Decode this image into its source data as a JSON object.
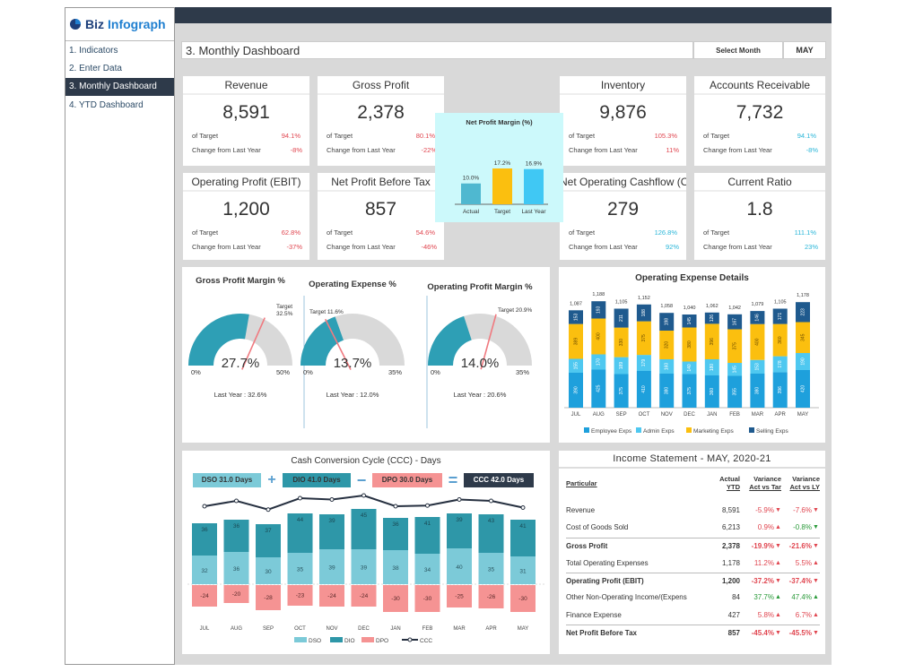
{
  "brand": {
    "name_part1": "Biz",
    "name_part2": "Infograph"
  },
  "sidebar": {
    "items": [
      {
        "label": "1. Indicators"
      },
      {
        "label": "2. Enter Data"
      },
      {
        "label": "3. Monthly Dashboard",
        "active": true
      },
      {
        "label": "4. YTD Dashboard"
      }
    ]
  },
  "header": {
    "title": "3. Monthly Dashboard",
    "select_label": "Select Month",
    "month": "MAY"
  },
  "kpis": [
    {
      "title": "Revenue",
      "value": "8,591",
      "target": "94.1%",
      "change": "-8%",
      "color": "red"
    },
    {
      "title": "Gross Profit",
      "value": "2,378",
      "target": "80.1%",
      "change": "-22%",
      "color": "red"
    },
    {
      "title": "Inventory",
      "value": "9,876",
      "target": "105.3%",
      "change": "11%",
      "color": "red"
    },
    {
      "title": "Accounts Receivable",
      "value": "7,732",
      "target": "94.1%",
      "change": "-8%",
      "color": "cy"
    },
    {
      "title": "Operating Profit (EBIT)",
      "value": "1,200",
      "target": "62.8%",
      "change": "-37%",
      "color": "red"
    },
    {
      "title": "Net Profit Before Tax",
      "value": "857",
      "target": "54.6%",
      "change": "-46%",
      "color": "red"
    },
    {
      "title": "Net Operating Cashflow (OCF)",
      "value": "279",
      "target": "126.8%",
      "change": "92%",
      "color": "cy"
    },
    {
      "title": "Current Ratio",
      "value": "1.8",
      "target": "111.1%",
      "change": "23%",
      "color": "cy"
    }
  ],
  "kpi_labels": {
    "of_target": "of Target",
    "change": "Change from Last Year"
  },
  "colors": {
    "dark": "#2e3a4a",
    "teal": "#2e9fb5",
    "grey": "#d9d9d9",
    "needle": "#f07a80",
    "red": "#e0454f",
    "cyan": "#29b6d8",
    "green": "#2a9a3a",
    "employee": "#1ea0dc",
    "admin": "#4fc8f0",
    "marketing": "#fbbf0f",
    "selling": "#1f5a8e",
    "dso": "#7ccad8",
    "dio": "#2e97a8",
    "dpo": "#f59393",
    "ccc": "#263040"
  },
  "gauges": [
    {
      "title": "Gross Profit Margin %",
      "value": 27.7,
      "value_label": "27.7%",
      "max": 50,
      "min_label": "0%",
      "max_label": "50%",
      "target": 32.5,
      "target_label": "Target 32.5%",
      "last_year": "Last Year : 32.6%"
    },
    {
      "title": "Operating Expense %",
      "value": 13.7,
      "value_label": "13.7%",
      "max": 35,
      "min_label": "0%",
      "max_label": "35%",
      "target": 11.6,
      "target_label": "Target 11.6%",
      "last_year": "Last Year : 12.0%"
    },
    {
      "title": "Operating Profit Margin %",
      "value": 14.0,
      "value_label": "14.0%",
      "max": 35,
      "min_label": "0%",
      "max_label": "35%",
      "target": 20.9,
      "target_label": "Target 20.9%",
      "last_year": "Last Year : 20.6%"
    }
  ],
  "chart_data": [
    {
      "type": "bar",
      "title": "Net Profit Margin (%)",
      "categories": [
        "Actual",
        "Target",
        "Last Year"
      ],
      "values": [
        10.0,
        17.2,
        16.9
      ],
      "labels": [
        "10.0%",
        "17.2%",
        "16.9%"
      ],
      "colors": [
        "#4fb8d0",
        "#fbbf0f",
        "#40c8f4"
      ]
    },
    {
      "type": "bar",
      "stacked": true,
      "title": "Operating Expense Details",
      "categories": [
        "JUL",
        "AUG",
        "SEP",
        "OCT",
        "NOV",
        "DEC",
        "JAN",
        "FEB",
        "MAR",
        "APR",
        "MAY"
      ],
      "series": [
        {
          "name": "Employee Exps",
          "values": [
            390,
            425,
            375,
            410,
            380,
            375,
            360,
            355,
            380,
            396,
            420
          ]
        },
        {
          "name": "Admin Exps",
          "values": [
            155,
            170,
            189,
            179,
            160,
            140,
            180,
            145,
            153,
            178,
            190
          ]
        },
        {
          "name": "Marketing Exps",
          "values": [
            389,
            400,
            330,
            375,
            320,
            380,
            396,
            375,
            400,
            360,
            345
          ]
        },
        {
          "name": "Selling Exps",
          "values": [
            153,
            193,
            211,
            188,
            198,
            145,
            126,
            167,
            146,
            171,
            223
          ]
        }
      ],
      "totals": [
        "1,087",
        "1,188",
        "1,105",
        "1,152",
        "1,058",
        "1,040",
        "1,062",
        "1,042",
        "1,079",
        "1,105",
        "1,178"
      ],
      "legend": "bottom"
    },
    {
      "type": "bar",
      "stacked": true,
      "title": "Cash Conversion Cycle (CCC) - Days",
      "categories": [
        "JUL",
        "AUG",
        "SEP",
        "OCT",
        "NOV",
        "DEC",
        "JAN",
        "FEB",
        "MAR",
        "APR",
        "MAY"
      ],
      "series": [
        {
          "name": "DSO",
          "values": [
            32,
            36,
            30,
            35,
            39,
            39,
            38,
            34,
            40,
            35,
            31
          ]
        },
        {
          "name": "DIO",
          "values": [
            36,
            36,
            37,
            44,
            39,
            45,
            36,
            41,
            39,
            43,
            41
          ]
        },
        {
          "name": "DPO",
          "values": [
            -24,
            -20,
            -28,
            -23,
            -24,
            -24,
            -30,
            -30,
            -25,
            -26,
            -30
          ]
        },
        {
          "name": "CCC",
          "type": "line",
          "values": [
            44,
            52,
            39,
            56,
            54,
            60,
            44,
            45,
            54,
            52,
            42
          ]
        }
      ],
      "legend": "bottom",
      "summary": {
        "dso": "DSO 31.0 Days",
        "dio": "DIO 41.0 Days",
        "dpo": "DPO 30.0 Days",
        "ccc": "CCC 42.0 Days",
        "plus": "+",
        "minus": "−",
        "equals": "="
      }
    }
  ],
  "income_statement": {
    "title": "Income Statement - MAY, 2020-21",
    "headers": {
      "particular": "Particular",
      "actual1": "Actual",
      "actual2": "YTD",
      "vt1": "Variance",
      "vt2": "Act vs Tar",
      "vl1": "Variance",
      "vl2": "Act vs LY"
    },
    "rows": [
      {
        "name": "Revenue",
        "actual": "8,591",
        "vt": "-5.9%",
        "vt_dir": "down",
        "vt_c": "red",
        "vl": "-7.6%",
        "vl_dir": "down",
        "vl_c": "red"
      },
      {
        "name": "Cost of Goods Sold",
        "actual": "6,213",
        "vt": "0.9%",
        "vt_dir": "up",
        "vt_c": "red",
        "vl": "-0.8%",
        "vl_dir": "down",
        "vl_c": "green"
      },
      {
        "name": "Gross Profit",
        "bold": true,
        "actual": "2,378",
        "vt": "-19.9%",
        "vt_dir": "down",
        "vt_c": "red",
        "vl": "-21.6%",
        "vl_dir": "down",
        "vl_c": "red"
      },
      {
        "name": "Total Operating Expenses",
        "actual": "1,178",
        "vt": "11.2%",
        "vt_dir": "up",
        "vt_c": "red",
        "vl": "5.5%",
        "vl_dir": "up",
        "vl_c": "red"
      },
      {
        "name": "Operating Profit (EBIT)",
        "bold": true,
        "actual": "1,200",
        "vt": "-37.2%",
        "vt_dir": "down",
        "vt_c": "red",
        "vl": "-37.4%",
        "vl_dir": "down",
        "vl_c": "red"
      },
      {
        "name": "Other Non-Operating Income/(Expens",
        "actual": "84",
        "vt": "37.7%",
        "vt_dir": "up",
        "vt_c": "green",
        "vl": "47.4%",
        "vl_dir": "up",
        "vl_c": "green"
      },
      {
        "name": "Finance Expense",
        "actual": "427",
        "vt": "5.8%",
        "vt_dir": "up",
        "vt_c": "red",
        "vl": "6.7%",
        "vl_dir": "up",
        "vl_c": "red"
      },
      {
        "name": "Net Profit Before Tax",
        "bold": true,
        "actual": "857",
        "vt": "-45.4%",
        "vt_dir": "down",
        "vt_c": "red",
        "vl": "-45.5%",
        "vl_dir": "down",
        "vl_c": "red"
      }
    ]
  }
}
